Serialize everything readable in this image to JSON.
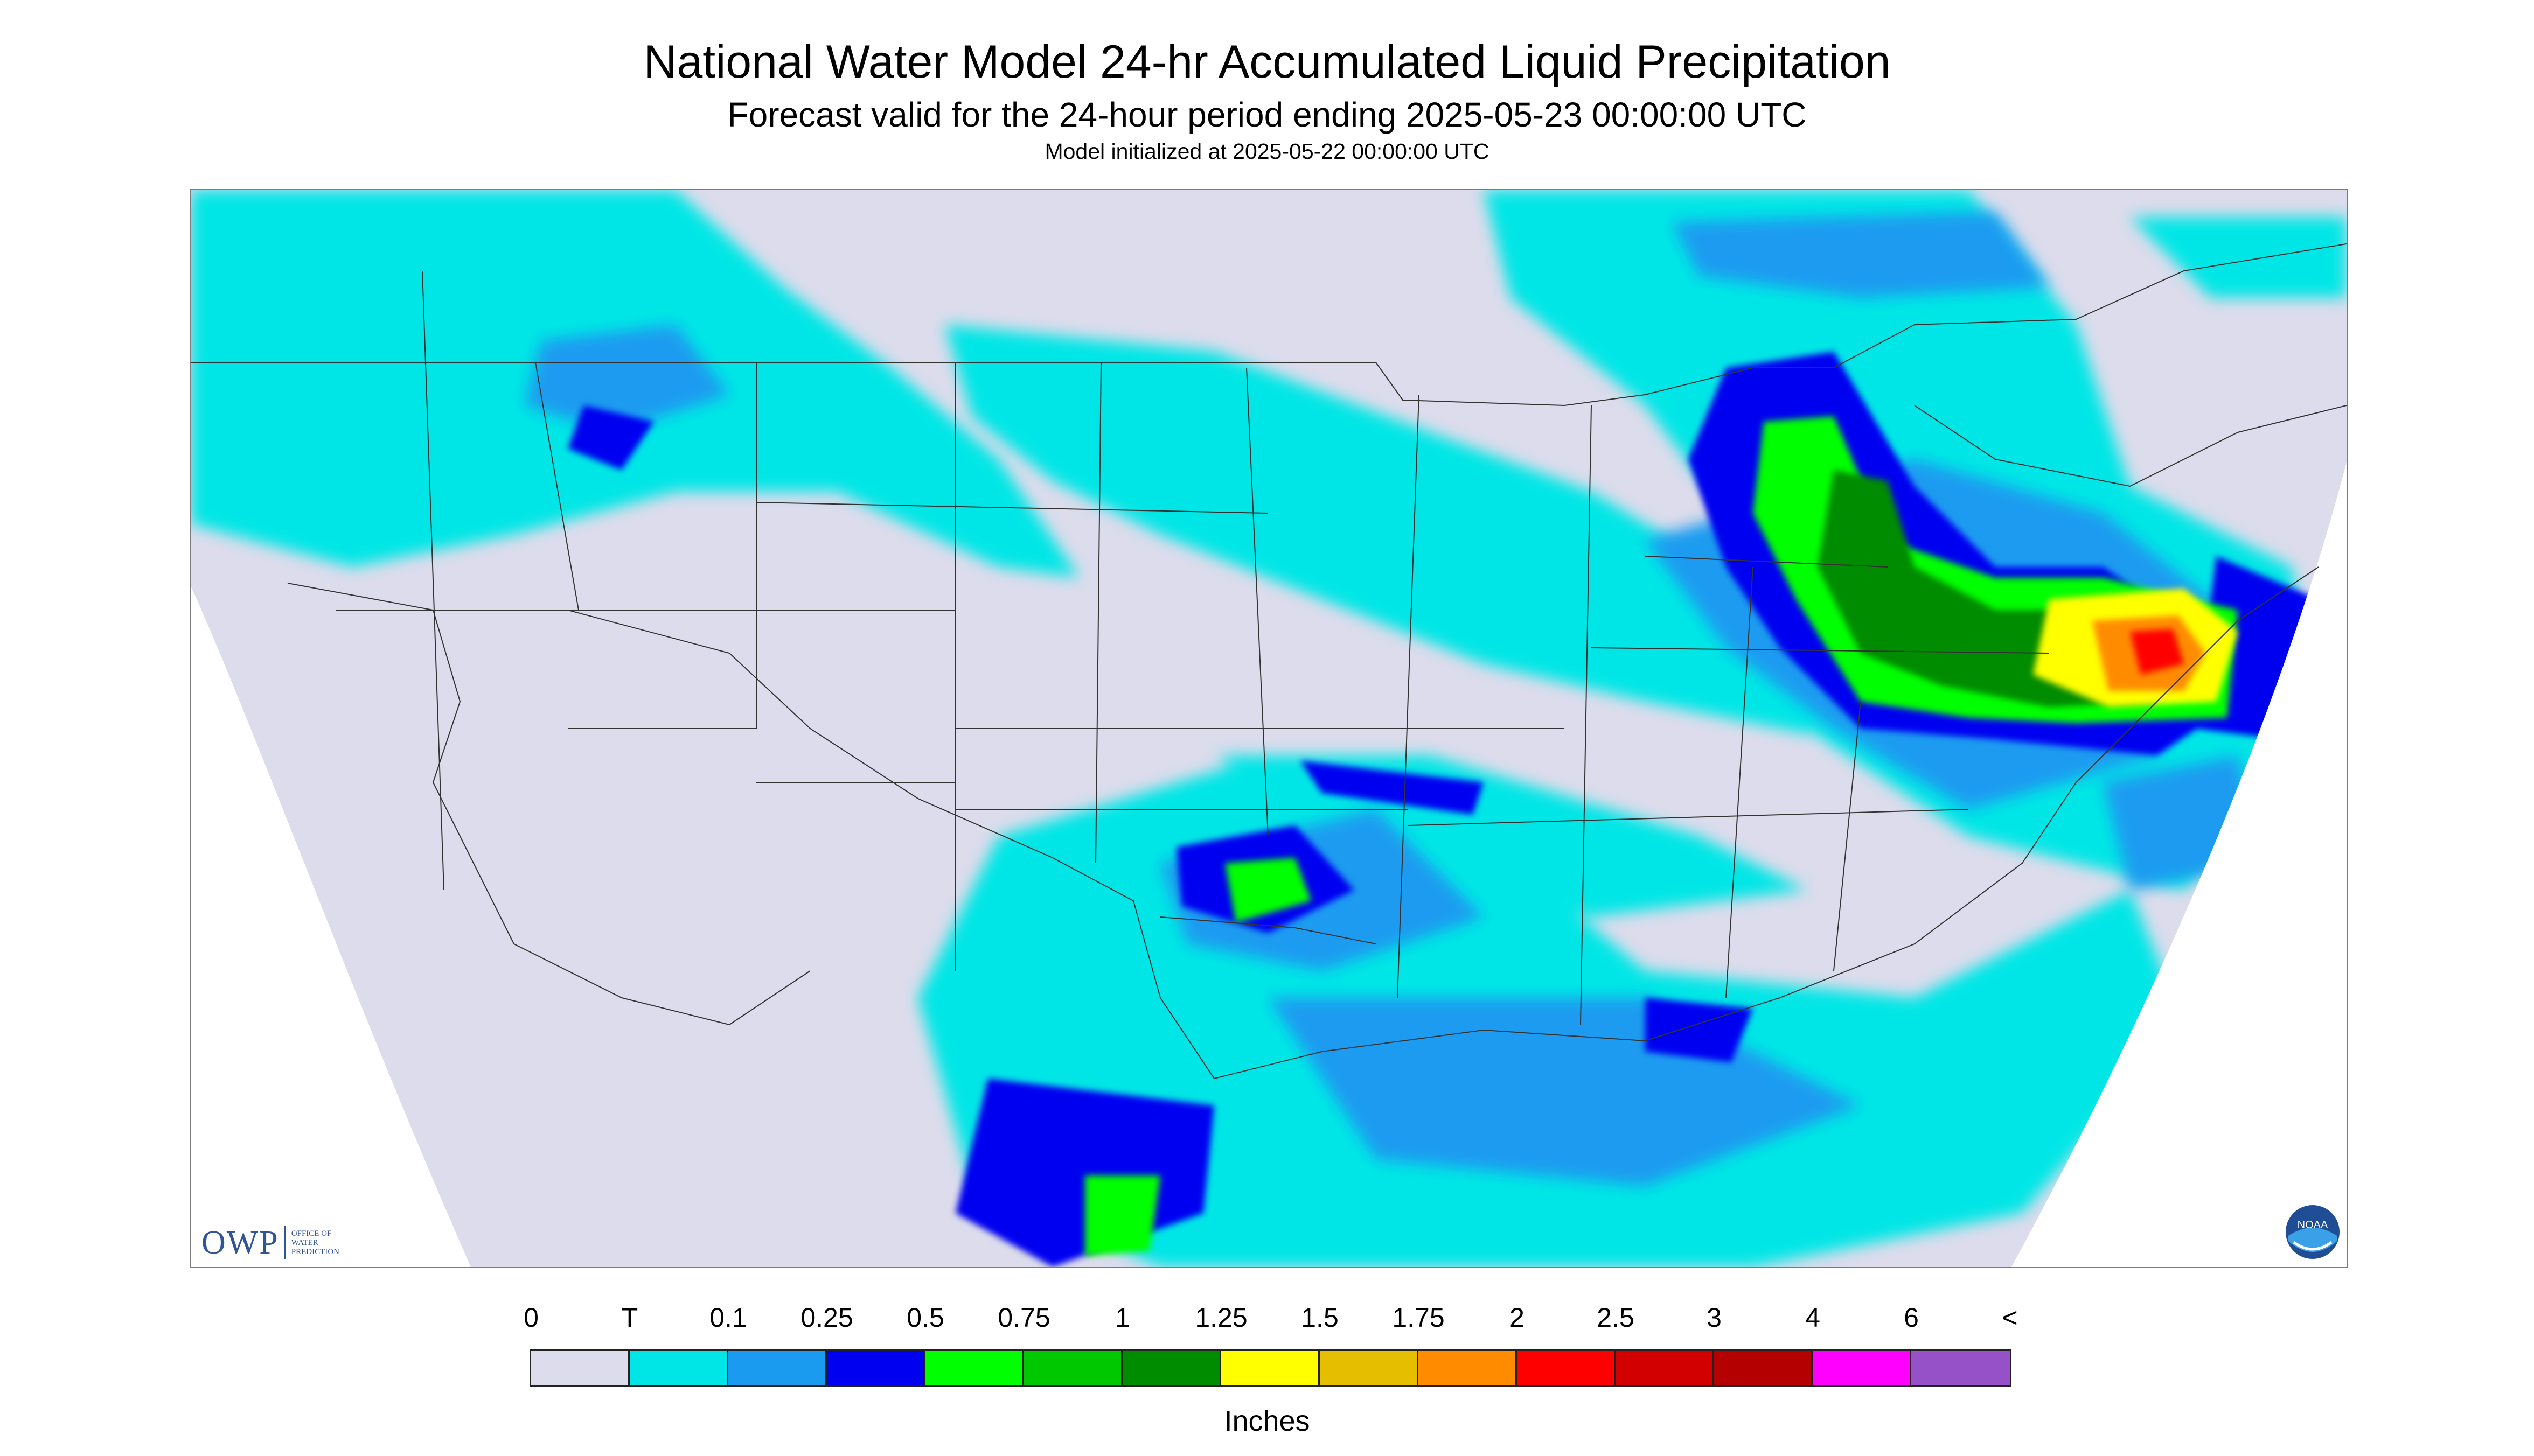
{
  "title": "National Water Model 24-hr Accumulated Liquid Precipitation",
  "subtitle": "Forecast valid for the 24-hour period ending 2025-05-23 00:00:00 UTC",
  "init_line": "Model initialized at 2025-05-22 00:00:00 UTC",
  "logo": {
    "text": "OWP",
    "lines": "OFFICE OF\nWATER\nPREDICTION"
  },
  "noaa_logo_text": "NOAA",
  "legend": {
    "units": "Inches",
    "labels": [
      "0",
      "T",
      "0.1",
      "0.25",
      "0.5",
      "0.75",
      "1",
      "1.25",
      "1.5",
      "1.75",
      "2",
      "2.5",
      "3",
      "4",
      "6",
      "<"
    ],
    "colors": [
      "#dcdcec",
      "#00e6e6",
      "#1a9bf0",
      "#0000f0",
      "#00ff00",
      "#00c800",
      "#008c00",
      "#ffff00",
      "#e6be00",
      "#ff8c00",
      "#ff0000",
      "#d20000",
      "#b40000",
      "#ff00ff",
      "#9650c8"
    ]
  },
  "map_colors": {
    "no_data": "#ffffff",
    "zero": "#dcdcec",
    "boundary": "#333333"
  }
}
